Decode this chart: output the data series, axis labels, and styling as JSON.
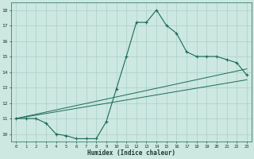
{
  "xlabel": "Humidex (Indice chaleur)",
  "xlim": [
    -0.5,
    23.5
  ],
  "ylim": [
    9.5,
    18.5
  ],
  "yticks": [
    10,
    11,
    12,
    13,
    14,
    15,
    16,
    17,
    18
  ],
  "xticks": [
    0,
    1,
    2,
    3,
    4,
    5,
    6,
    7,
    8,
    9,
    10,
    11,
    12,
    13,
    14,
    15,
    16,
    17,
    18,
    19,
    20,
    21,
    22,
    23
  ],
  "bg_color": "#cce8e0",
  "grid_color": "#aacfc8",
  "line_color": "#1a6b5a",
  "main_curve_x": [
    0,
    1,
    2,
    3,
    4,
    5,
    6,
    7,
    8,
    9,
    10,
    11,
    12,
    13,
    14,
    15,
    16,
    17,
    18,
    19,
    20,
    21,
    22,
    23
  ],
  "main_curve_y": [
    11,
    11,
    11,
    10.7,
    10,
    9.9,
    9.7,
    9.7,
    9.7,
    10.8,
    12.9,
    15,
    17.2,
    17.2,
    18,
    17.0,
    16.5,
    15.3,
    15.0,
    15.0,
    15.0,
    14.8,
    14.6,
    13.8
  ],
  "trend_line1_x": [
    0,
    23
  ],
  "trend_line1_y": [
    11.0,
    14.2
  ],
  "trend_line2_x": [
    0,
    23
  ],
  "trend_line2_y": [
    11.0,
    13.5
  ]
}
